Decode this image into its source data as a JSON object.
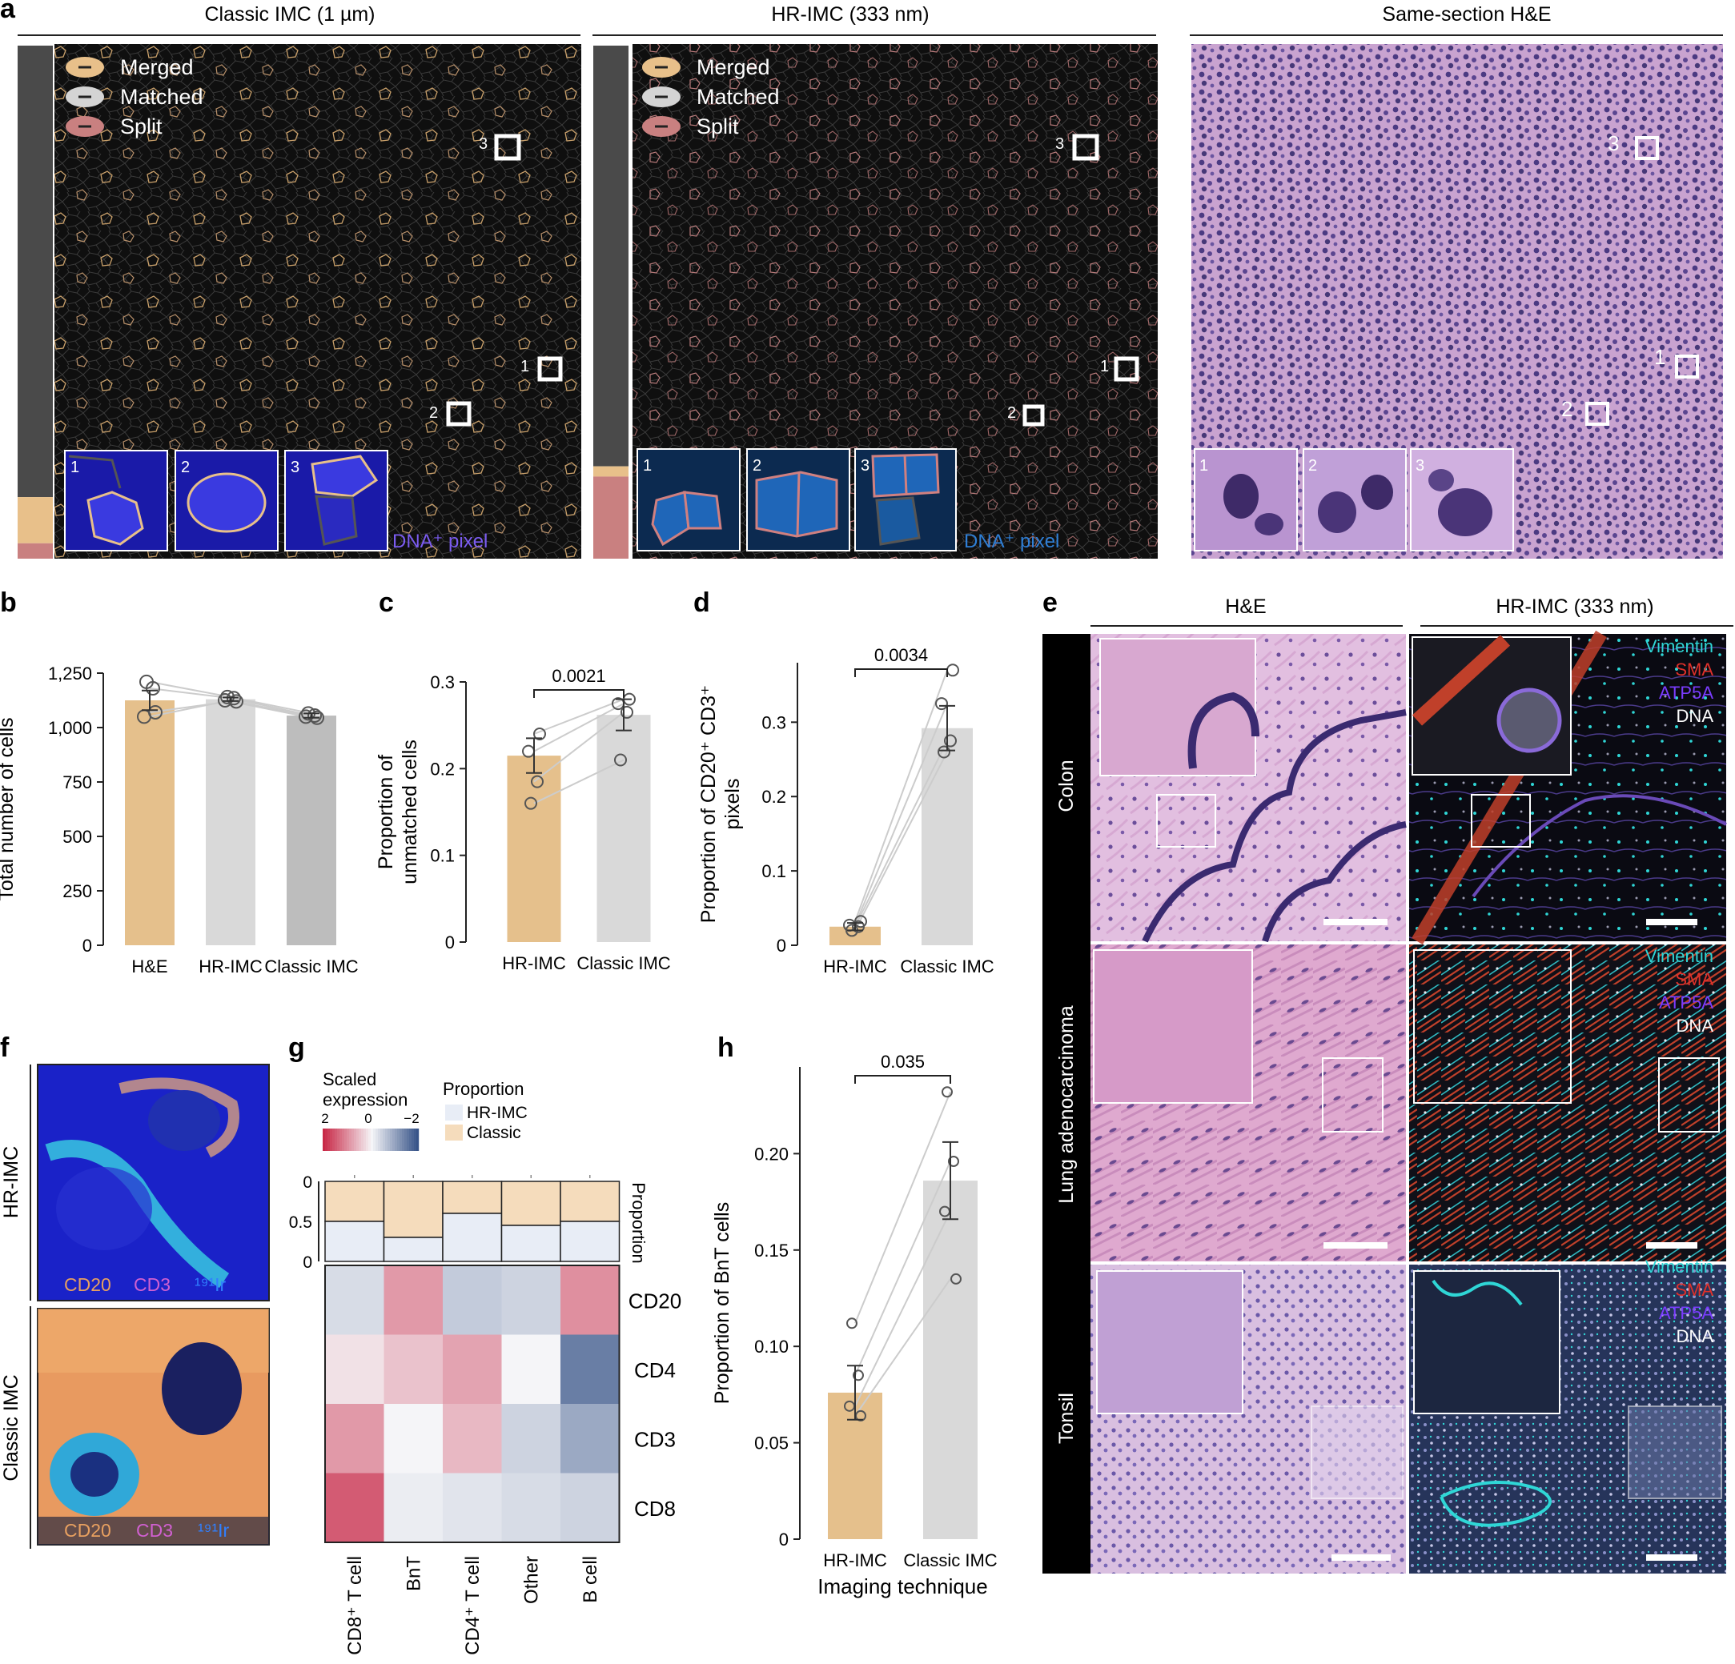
{
  "panel_a": {
    "letter": "a",
    "columns": [
      {
        "title": "Classic IMC (1 µm)",
        "corner_label": "DNA⁺ pixel",
        "corner_color": "#7b5cf0",
        "bar_fractions": [
          0.88,
          0.09,
          0.03
        ]
      },
      {
        "title": "HR-IMC (333 nm)",
        "corner_label": "DNA⁺ pixel",
        "corner_color": "#2f7fd6",
        "bar_fractions": [
          0.82,
          0.02,
          0.16
        ]
      },
      {
        "title": "Same-section H&E"
      }
    ],
    "legend": [
      "Merged",
      "Matched",
      "Split"
    ],
    "legend_colors": [
      "#e8c08a",
      "#d4d4d4",
      "#c98080"
    ],
    "roi_labels": [
      "1",
      "2",
      "3"
    ],
    "inset_labels": [
      "1",
      "2",
      "3"
    ]
  },
  "chart_data": [
    {
      "panel": "b",
      "type": "bar",
      "categories": [
        "H&E",
        "HR-IMC",
        "Classic IMC"
      ],
      "values": [
        1125,
        1130,
        1055
      ],
      "error": [
        45,
        8,
        10
      ],
      "points": [
        [
          1210,
          1180,
          1050,
          1070
        ],
        [
          1140,
          1135,
          1125,
          1120
        ],
        [
          1065,
          1055,
          1050,
          1045
        ]
      ],
      "ylabel": "Total number of cells",
      "ylim": [
        0,
        1250
      ],
      "yticks": [
        "0",
        "250",
        "500",
        "750",
        "1,000",
        "1,250"
      ],
      "ytick_values": [
        0,
        250,
        500,
        750,
        1000,
        1250
      ],
      "colors": [
        "#e5c08c",
        "#d9d9d9",
        "#bdbdbd"
      ]
    },
    {
      "panel": "c",
      "type": "bar",
      "categories": [
        "HR-IMC",
        "Classic IMC"
      ],
      "values": [
        0.215,
        0.262
      ],
      "error": [
        0.02,
        0.018
      ],
      "points": [
        [
          0.16,
          0.185,
          0.22,
          0.24
        ],
        [
          0.21,
          0.265,
          0.275,
          0.28
        ]
      ],
      "ylabel": "Proportion of unmatched cells",
      "ylim": [
        0,
        0.3
      ],
      "yticks": [
        "0",
        "0.1",
        "0.2",
        "0.3"
      ],
      "ytick_values": [
        0,
        0.1,
        0.2,
        0.3
      ],
      "pvalue": "0.0021",
      "colors": [
        "#e5c08c",
        "#d9d9d9"
      ]
    },
    {
      "panel": "d",
      "type": "bar",
      "categories": [
        "HR-IMC",
        "Classic IMC"
      ],
      "values": [
        0.025,
        0.292
      ],
      "error": [
        0.005,
        0.03
      ],
      "points": [
        [
          0.02,
          0.025,
          0.027,
          0.032
        ],
        [
          0.26,
          0.275,
          0.325,
          0.37
        ]
      ],
      "ylabel": "Proportion of CD20⁺ CD3⁺ pixels",
      "ylim": [
        0,
        0.38
      ],
      "yticks": [
        "0",
        "0.1",
        "0.2",
        "0.3"
      ],
      "ytick_values": [
        0,
        0.1,
        0.2,
        0.3
      ],
      "pvalue": "0.0034",
      "colors": [
        "#e5c08c",
        "#d9d9d9"
      ]
    },
    {
      "panel": "g",
      "type": "heatmap",
      "columns": [
        "CD8⁺ T cell",
        "BnT",
        "CD4⁺ T cell",
        "Other",
        "B cell"
      ],
      "rows": [
        "CD20",
        "CD4",
        "CD3",
        "CD8"
      ],
      "values": [
        [
          -0.3,
          0.9,
          -0.5,
          -0.4,
          1.0
        ],
        [
          0.2,
          0.5,
          0.8,
          0.0,
          -1.4
        ],
        [
          0.9,
          0.0,
          0.6,
          -0.4,
          -0.9
        ],
        [
          1.5,
          -0.1,
          -0.2,
          -0.3,
          -0.4
        ]
      ],
      "proportion_hr_imc": [
        0.5,
        0.3,
        0.6,
        0.45,
        0.5
      ],
      "legend_title": "Scaled expression",
      "legend_ticks": [
        "2",
        "0",
        "−2"
      ],
      "proportion_title": "Proportion",
      "proportion_legend": [
        "HR-IMC",
        "Classic"
      ],
      "proportion_axis_label": "Proportion",
      "proportion_ticks": [
        "0",
        "0.5",
        "0"
      ]
    },
    {
      "panel": "h",
      "type": "bar",
      "categories": [
        "HR-IMC",
        "Classic IMC"
      ],
      "values": [
        0.076,
        0.186
      ],
      "error": [
        0.014,
        0.02
      ],
      "points": [
        [
          0.112,
          0.085,
          0.069,
          0.064
        ],
        [
          0.232,
          0.196,
          0.17,
          0.135
        ]
      ],
      "ylabel": "Proportion of BnT cells",
      "xlabel": "Imaging technique",
      "ylim": [
        0,
        0.245
      ],
      "yticks": [
        "0",
        "0.05",
        "0.10",
        "0.15",
        "0.20"
      ],
      "ytick_values": [
        0,
        0.05,
        0.1,
        0.15,
        0.2
      ],
      "pvalue": "0.035",
      "colors": [
        "#e5c08c",
        "#d9d9d9"
      ]
    }
  ],
  "panel_e": {
    "letter": "e",
    "col_titles": [
      "H&E",
      "HR-IMC (333 nm)"
    ],
    "rows": [
      "Colon",
      "Lung adenocarcinoma",
      "Tonsil"
    ],
    "markers": [
      "Vimentin",
      "SMA",
      "ATP5A",
      "DNA"
    ],
    "marker_colors": [
      "#2fd6d6",
      "#e0302a",
      "#7a3cff",
      "#ffffff"
    ]
  },
  "panel_f": {
    "letter": "f",
    "rows": [
      "HR-IMC",
      "Classic IMC"
    ],
    "channel_labels": [
      "CD20",
      "CD3",
      "¹⁹¹Ir"
    ],
    "channel_colors": [
      "#e8a060",
      "#d060d0",
      "#3080ff"
    ]
  },
  "letters": {
    "b": "b",
    "c": "c",
    "d": "d",
    "f": "f",
    "g": "g",
    "h": "h"
  }
}
